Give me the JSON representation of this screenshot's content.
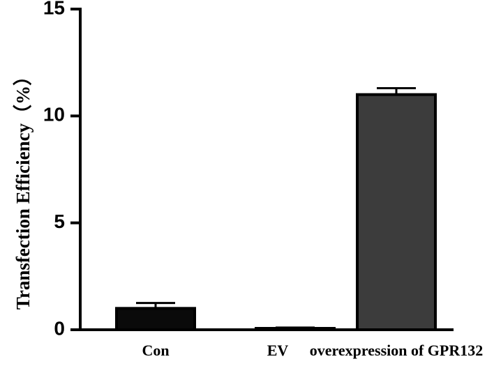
{
  "chart_data": {
    "type": "bar",
    "categories": [
      "Con",
      "EV",
      "overexpression of GPR132"
    ],
    "values": [
      1.0,
      0.05,
      11.0
    ],
    "errors": [
      0.25,
      0.05,
      0.3
    ],
    "bar_colors": [
      "#0a0a0a",
      "#0a0a0a",
      "#3c3c3c"
    ],
    "ylabel": "Transfection Efficiency（%）",
    "xlabel": "",
    "ylim": [
      0,
      15
    ],
    "yticks": [
      0,
      5,
      10,
      15
    ],
    "ytick_labels": [
      "0",
      "5",
      "10",
      "15"
    ],
    "grid": false
  }
}
